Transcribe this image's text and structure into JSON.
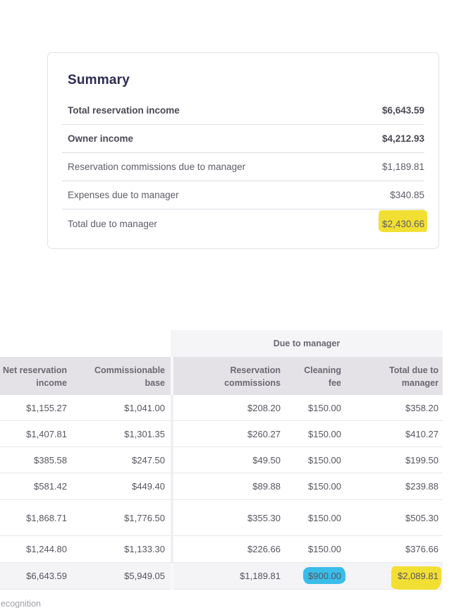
{
  "summary": {
    "title": "Summary",
    "rows": [
      {
        "label": "Total reservation income",
        "value": "$6,643.59"
      },
      {
        "label": "Owner income",
        "value": "$4,212.93"
      },
      {
        "label": "Reservation commissions due to manager",
        "value": "$1,189.81"
      },
      {
        "label": "Expenses due to manager",
        "value": "$340.85"
      },
      {
        "label": "Total due to manager",
        "value": "$2,430.66",
        "highlight": "yellow"
      }
    ]
  },
  "table": {
    "group_header": "Due to manager",
    "columns": [
      {
        "line1": "Net reservation",
        "line2": "income"
      },
      {
        "line1": "Commissionable",
        "line2": "base"
      },
      {
        "line1": "Reservation",
        "line2": "commissions"
      },
      {
        "line1": "Cleaning",
        "line2": "fee"
      },
      {
        "line1": "Total due to",
        "line2": "manager"
      }
    ],
    "rows": [
      [
        "$1,155.27",
        "$1,041.00",
        "$208.20",
        "$150.00",
        "$358.20"
      ],
      [
        "$1,407.81",
        "$1,301.35",
        "$260.27",
        "$150.00",
        "$410.27"
      ],
      [
        "$385.58",
        "$247.50",
        "$49.50",
        "$150.00",
        "$199.50"
      ],
      [
        "$581.42",
        "$449.40",
        "$89.88",
        "$150.00",
        "$239.88"
      ],
      [
        "$1,868.71",
        "$1,776.50",
        "$355.30",
        "$150.00",
        "$505.30"
      ],
      [
        "$1,244.80",
        "$1,133.30",
        "$226.66",
        "$150.00",
        "$376.66"
      ]
    ],
    "total_row": {
      "values": [
        "$6,643.59",
        "$5,949.05",
        "$1,189.81",
        "$900.00",
        "$2,089.81"
      ],
      "highlights": {
        "3": "cyan",
        "4": "yellow"
      }
    }
  },
  "footer": {
    "partial_text": "ecognition"
  },
  "colors": {
    "highlight_yellow": "#f2df33",
    "highlight_cyan": "#39bde9",
    "header_bg": "#e4e2e6",
    "group_header_bg": "#f5f4f7",
    "total_row_bg": "#f4f3f6",
    "row_border": "#e8e7eb",
    "card_border": "#e3e2e8",
    "separator": "#dcdbe2",
    "title_color": "#2d2a54",
    "text_strong": "#4b4955",
    "text_normal": "#5e5c67",
    "cell_text": "#57555f",
    "header_text": "#6b6874"
  }
}
